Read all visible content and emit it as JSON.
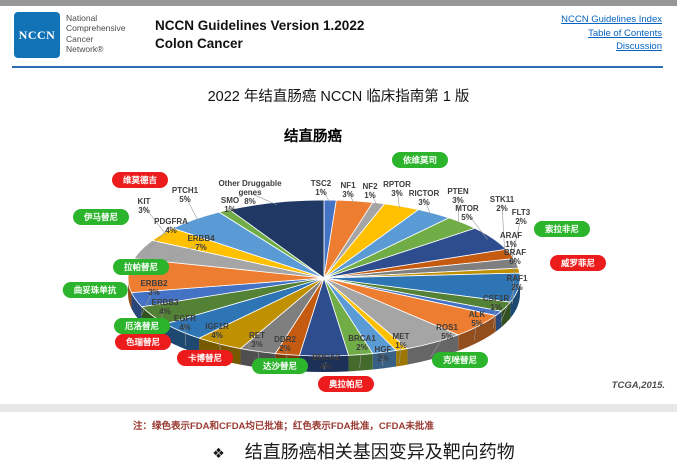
{
  "header": {
    "logo_acronym": "NCCN",
    "org_lines": [
      "National",
      "Comprehensive",
      "Cancer",
      "Network®"
    ],
    "title_line1": "NCCN Guidelines Version 1.2022",
    "title_line2": "Colon Cancer",
    "links": [
      {
        "label": "NCCN Guidelines Index"
      },
      {
        "label": "Table of Contents"
      },
      {
        "label": "Discussion"
      }
    ]
  },
  "page_title": "2022 年结直肠癌 NCCN 临床指南第 1 版",
  "chart_data": {
    "type": "pie",
    "title": "结直肠癌",
    "source": "TCGA,2015.",
    "unit": "%",
    "slices": [
      {
        "gene": "TSC2",
        "value": 1
      },
      {
        "gene": "NF1",
        "value": 3
      },
      {
        "gene": "NF2",
        "value": 1
      },
      {
        "gene": "RPTOR",
        "value": 3
      },
      {
        "gene": "RICTOR",
        "value": 3
      },
      {
        "gene": "PTEN",
        "value": 3
      },
      {
        "gene": "MTOR",
        "value": 5
      },
      {
        "gene": "STK11",
        "value": 2
      },
      {
        "gene": "FLT3",
        "value": 2
      },
      {
        "gene": "ARAF",
        "value": 1
      },
      {
        "gene": "BRAF",
        "value": 6
      },
      {
        "gene": "RAF1",
        "value": 2
      },
      {
        "gene": "CSF1R",
        "value": 1
      },
      {
        "gene": "ALK",
        "value": 5
      },
      {
        "gene": "ROS1",
        "value": 5
      },
      {
        "gene": "MET",
        "value": 1
      },
      {
        "gene": "HGF",
        "value": 2
      },
      {
        "gene": "BRCA1",
        "value": 2
      },
      {
        "gene": "BRCA2",
        "value": 4
      },
      {
        "gene": "DDR2",
        "value": 2
      },
      {
        "gene": "RET",
        "value": 3
      },
      {
        "gene": "IGF1R",
        "value": 4
      },
      {
        "gene": "EGFR",
        "value": 4
      },
      {
        "gene": "ERBB3",
        "value": 4
      },
      {
        "gene": "ERBB2",
        "value": 3
      },
      {
        "gene": "ERBB4",
        "value": 7
      },
      {
        "gene": "PDGFRA",
        "value": 4
      },
      {
        "gene": "KIT",
        "value": 3
      },
      {
        "gene": "PTCH1",
        "value": 5
      },
      {
        "gene": "SMO",
        "value": 1
      },
      {
        "gene": "Other Druggable genes",
        "value": 8
      }
    ],
    "drugs": [
      {
        "name": "维莫德吉",
        "approval": "red"
      },
      {
        "name": "伊马替尼",
        "approval": "green"
      },
      {
        "name": "依维莫司",
        "approval": "green"
      },
      {
        "name": "索拉非尼",
        "approval": "green"
      },
      {
        "name": "威罗菲尼",
        "approval": "red"
      },
      {
        "name": "克唑替尼",
        "approval": "green"
      },
      {
        "name": "奥拉帕尼",
        "approval": "red"
      },
      {
        "name": "达沙替尼",
        "approval": "green"
      },
      {
        "name": "卡博替尼",
        "approval": "red"
      },
      {
        "name": "色瑞替尼",
        "approval": "red"
      },
      {
        "name": "厄洛替尼",
        "approval": "green"
      },
      {
        "name": "曲妥珠单抗",
        "approval": "green"
      },
      {
        "name": "拉帕替尼",
        "approval": "green"
      }
    ],
    "legend_position": "floating-pills",
    "grid": false
  },
  "note": {
    "text": "注：绿色表示FDA和CFDA均已批准；红色表示FDA批准，CFDA未批准"
  },
  "footer": {
    "bullet": "❖",
    "text": "结直肠癌相关基因变异及靶向药物"
  },
  "colors": {
    "green_pill": "#2cb52c",
    "red_pill": "#ec1c1c",
    "link": "#0563C1",
    "logo_blue": "#1272b6",
    "header_rule": "#2a6db5",
    "note_text": "#993a33"
  }
}
